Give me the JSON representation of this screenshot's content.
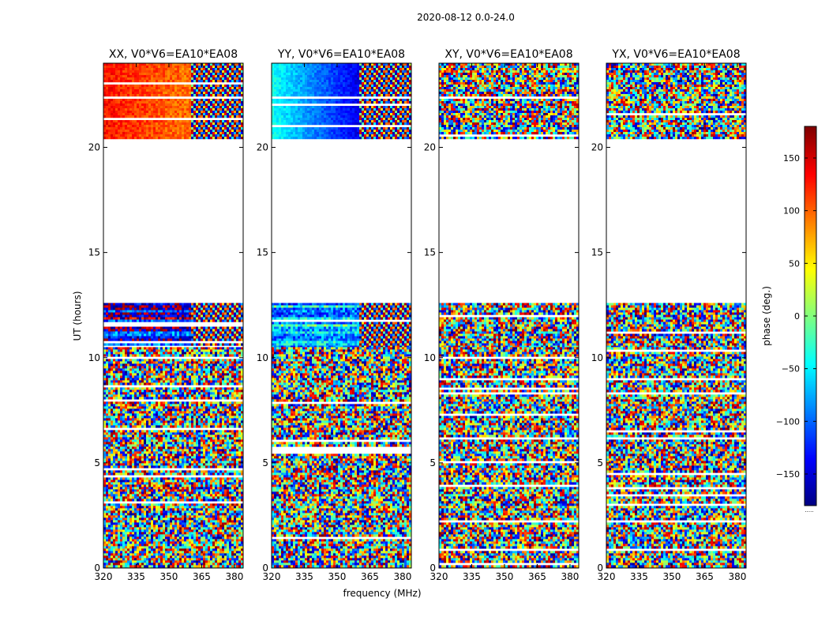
{
  "chart_data": {
    "type": "heatmap",
    "suptitle": "2020-08-12 0.0-24.0",
    "xlabel": "frequency (MHz)",
    "ylabel": "UT (hours)",
    "xlim": [
      320,
      384
    ],
    "ylim": [
      0,
      24
    ],
    "xticks": [
      320,
      335,
      350,
      365,
      380
    ],
    "yticks": [
      0,
      5,
      10,
      15,
      20
    ],
    "panels": [
      {
        "title": "XX, V0*V6=EA10*EA08",
        "segments": [
          {
            "t0": 20.4,
            "t1": 24.0,
            "pattern": "smooth",
            "base_phase": 130,
            "fringe_start_mhz": 360
          },
          {
            "t0": 10.5,
            "t1": 12.6,
            "pattern": "mixed",
            "base_phase": -150,
            "fringe_start_mhz": 360
          },
          {
            "t0": 0.0,
            "t1": 10.5,
            "pattern": "noise",
            "base_phase": -20,
            "fringe_start_mhz": 338
          }
        ]
      },
      {
        "title": "YY, V0*V6=EA10*EA08",
        "segments": [
          {
            "t0": 20.4,
            "t1": 24.0,
            "pattern": "gradient",
            "base_phase": -40,
            "fringe_start_mhz": 360
          },
          {
            "t0": 10.5,
            "t1": 12.6,
            "pattern": "mixed",
            "base_phase": -60,
            "fringe_start_mhz": 360
          },
          {
            "t0": 0.0,
            "t1": 10.5,
            "pattern": "noise",
            "base_phase": 0,
            "fringe_start_mhz": 338
          }
        ]
      },
      {
        "title": "XY, V0*V6=EA10*EA08",
        "segments": [
          {
            "t0": 20.4,
            "t1": 24.0,
            "pattern": "noise",
            "base_phase": -120,
            "fringe_start_mhz": 360
          },
          {
            "t0": 10.5,
            "t1": 12.6,
            "pattern": "noise",
            "base_phase": 0,
            "fringe_start_mhz": 360
          },
          {
            "t0": 0.0,
            "t1": 10.5,
            "pattern": "noise",
            "base_phase": 0,
            "fringe_start_mhz": 338
          }
        ]
      },
      {
        "title": "YX, V0*V6=EA10*EA08",
        "segments": [
          {
            "t0": 20.4,
            "t1": 24.0,
            "pattern": "noise",
            "base_phase": 10,
            "fringe_start_mhz": 360
          },
          {
            "t0": 10.5,
            "t1": 12.6,
            "pattern": "noise",
            "base_phase": 0,
            "fringe_start_mhz": 360
          },
          {
            "t0": 0.0,
            "t1": 10.5,
            "pattern": "noise",
            "base_phase": 0,
            "fringe_start_mhz": 338
          }
        ]
      }
    ],
    "gap_hours": [
      12.6,
      20.4
    ],
    "colorbar": {
      "label": "phase (deg.)",
      "range": [
        -180,
        180
      ],
      "ticks": [
        150,
        100,
        50,
        0,
        -50,
        -100,
        -150
      ],
      "colormap": "jet",
      "extra_label": "....."
    }
  }
}
